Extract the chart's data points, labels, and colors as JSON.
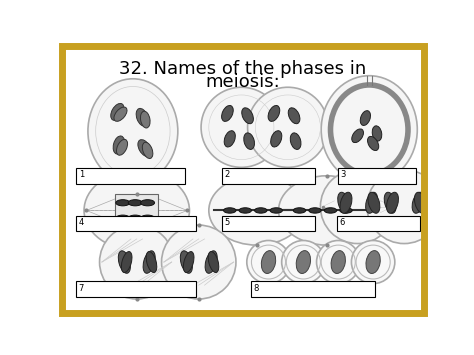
{
  "title_line1": "32. Names of the phases in",
  "title_line2": "meiosis:",
  "title_fontsize": 13,
  "background_color": "#ffffff",
  "border_color": "#c8a020",
  "border_linewidth": 5
}
